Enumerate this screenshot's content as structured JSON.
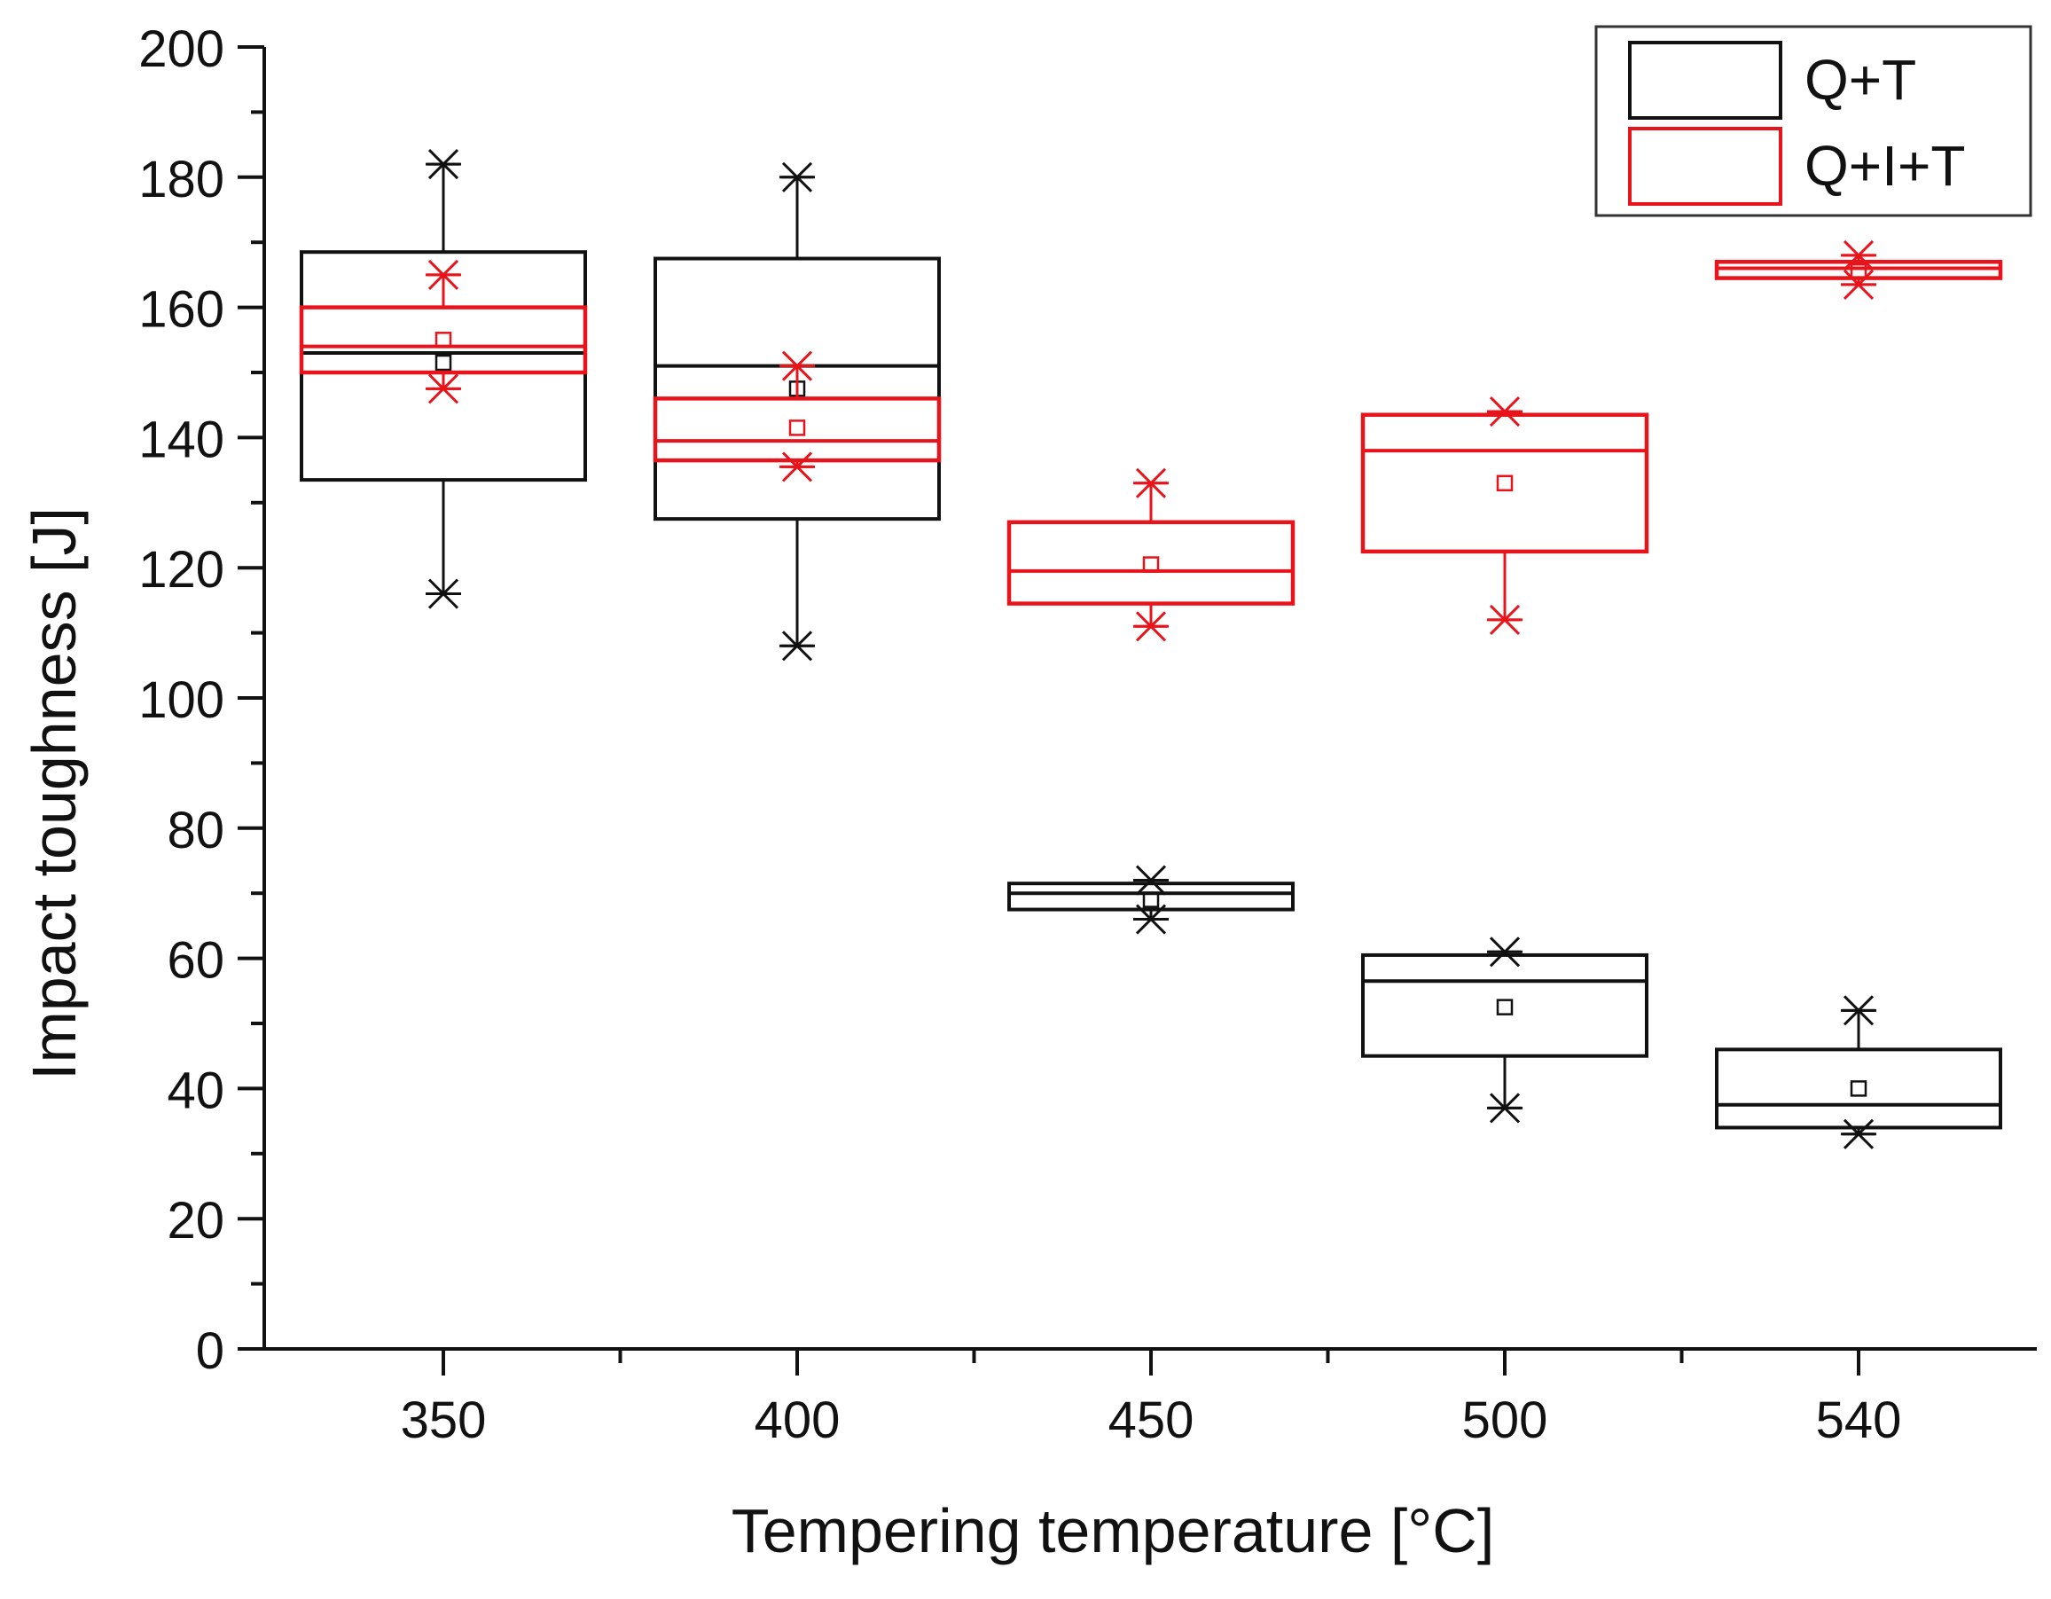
{
  "chart_data": {
    "type": "box",
    "title": "",
    "xlabel": "Tempering temperature [°C]",
    "ylabel": "Impact toughness [J]",
    "categories": [
      "350",
      "400",
      "450",
      "500",
      "540"
    ],
    "ylim": [
      0,
      200
    ],
    "yticks": [
      0,
      20,
      40,
      60,
      80,
      100,
      120,
      140,
      160,
      180,
      200
    ],
    "legend_position": "top-right",
    "series": [
      {
        "name": "Q+T",
        "color": "#111111",
        "boxes": [
          {
            "category": "350",
            "min": 116,
            "q1": 133.5,
            "median": 153,
            "q3": 168.5,
            "max": 182,
            "mean": 151.5
          },
          {
            "category": "400",
            "min": 108,
            "q1": 127.5,
            "median": 151,
            "q3": 167.5,
            "max": 180,
            "mean": 147.5
          },
          {
            "category": "450",
            "min": 66,
            "q1": 67.5,
            "median": 70,
            "q3": 71.5,
            "max": 72,
            "mean": 69
          },
          {
            "category": "500",
            "min": 37,
            "q1": 45,
            "median": 56.5,
            "q3": 60.5,
            "max": 61,
            "mean": 52.5
          },
          {
            "category": "540",
            "min": 33,
            "q1": 34,
            "median": 37.5,
            "q3": 46,
            "max": 52,
            "mean": 40
          }
        ]
      },
      {
        "name": "Q+I+T",
        "color": "#e8141b",
        "boxes": [
          {
            "category": "350",
            "min": 147.5,
            "q1": 150,
            "median": 154,
            "q3": 160,
            "max": 165,
            "mean": 155
          },
          {
            "category": "400",
            "min": 135.5,
            "q1": 136.5,
            "median": 139.5,
            "q3": 146,
            "max": 151,
            "mean": 141.5
          },
          {
            "category": "450",
            "min": 111,
            "q1": 114.5,
            "median": 119.5,
            "q3": 127,
            "max": 133,
            "mean": 120.5
          },
          {
            "category": "500",
            "min": 112,
            "q1": 122.5,
            "median": 138,
            "q3": 143.5,
            "max": 144,
            "mean": 133
          },
          {
            "category": "540",
            "min": 163.5,
            "q1": 164.5,
            "median": 166,
            "q3": 167,
            "max": 168,
            "mean": 165.5
          }
        ]
      }
    ]
  }
}
